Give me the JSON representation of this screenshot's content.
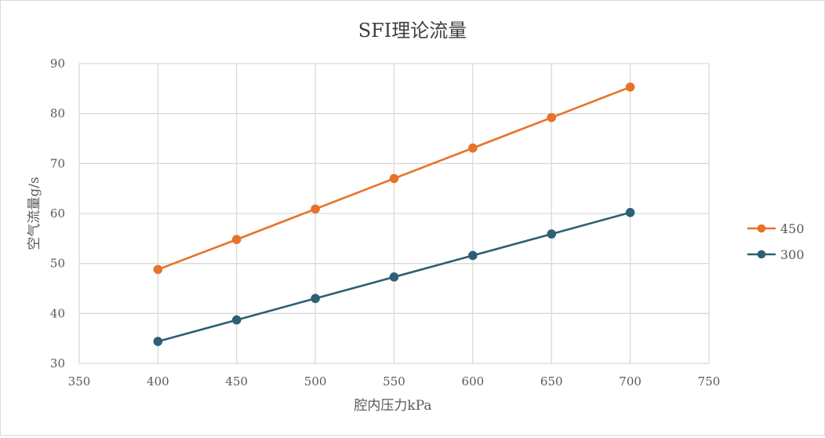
{
  "chart_data": {
    "type": "line",
    "title": "SFI理论流量",
    "xlabel": "腔内压力kPa",
    "ylabel": "空气流量g/s",
    "xlim": [
      350,
      750
    ],
    "ylim": [
      30,
      90
    ],
    "x_ticks": [
      350,
      400,
      450,
      500,
      550,
      600,
      650,
      700,
      750
    ],
    "y_ticks": [
      30,
      40,
      50,
      60,
      70,
      80,
      90
    ],
    "grid": true,
    "legend_position": "right",
    "x": [
      400,
      450,
      500,
      550,
      600,
      650,
      700
    ],
    "series": [
      {
        "name": "450",
        "color": "#e8722a",
        "values": [
          48.8,
          54.8,
          60.9,
          67.0,
          73.1,
          79.2,
          85.3
        ]
      },
      {
        "name": "300",
        "color": "#2f5f74",
        "values": [
          34.4,
          38.7,
          43.0,
          47.3,
          51.6,
          55.9,
          60.2
        ]
      }
    ]
  }
}
